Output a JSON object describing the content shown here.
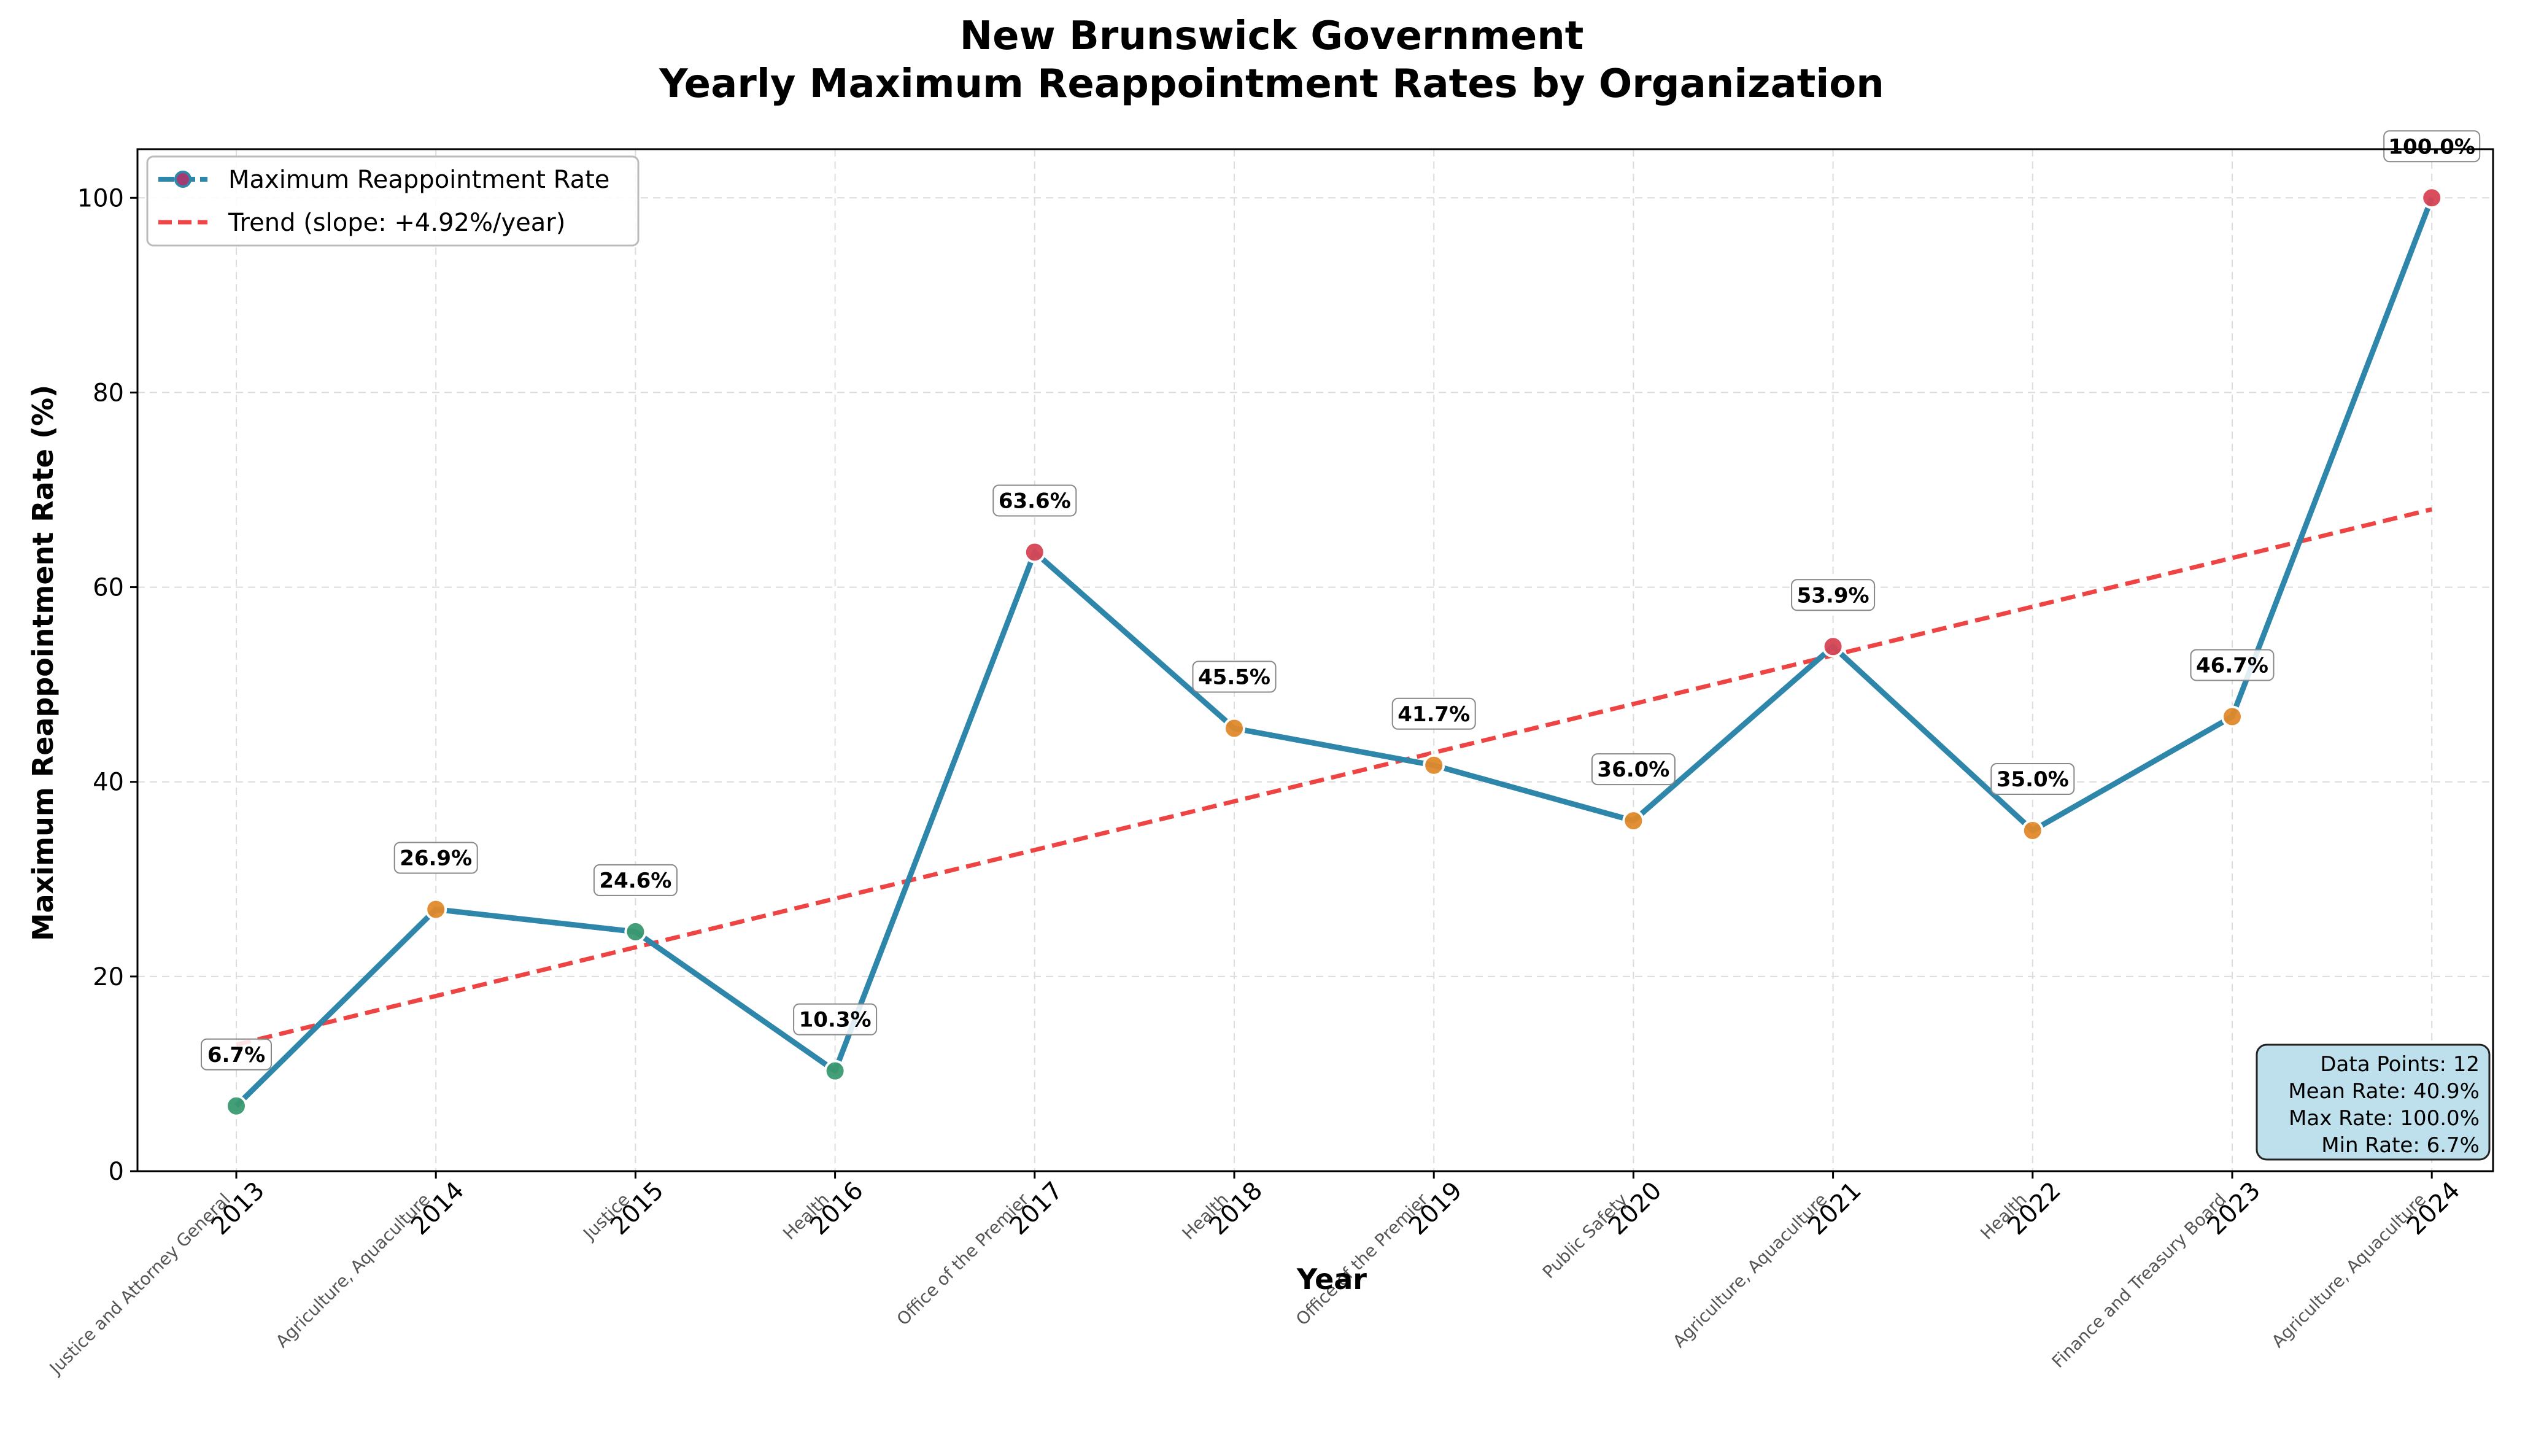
{
  "chart_data": {
    "type": "line",
    "title_line1": "New Brunswick Government",
    "title_line2": "Yearly Maximum Reappointment Rates by Organization",
    "xlabel": "Year",
    "ylabel": "Maximum Reappointment Rate (%)",
    "ylim": [
      0,
      105
    ],
    "yticks": [
      0,
      20,
      40,
      60,
      80,
      100
    ],
    "grid": true,
    "x": [
      2013,
      2014,
      2015,
      2016,
      2017,
      2018,
      2019,
      2020,
      2021,
      2022,
      2023,
      2024
    ],
    "values": [
      6.7,
      26.9,
      24.6,
      10.3,
      63.6,
      45.5,
      41.7,
      36.0,
      53.9,
      35.0,
      46.7,
      100.0
    ],
    "value_labels": [
      "6.7%",
      "26.9%",
      "24.6%",
      "10.3%",
      "63.6%",
      "45.5%",
      "41.7%",
      "36.0%",
      "53.9%",
      "35.0%",
      "46.7%",
      "100.0%"
    ],
    "organizations": [
      "Justice and Attorney General",
      "Agriculture, Aquaculture",
      "Justice",
      "Health",
      "Office of the Premier",
      "Health",
      "Office of the Premier",
      "Public Safety",
      "Agriculture, Aquaculture",
      "Health",
      "Finance and Treasury Board",
      "Agriculture, Aquaculture"
    ],
    "trend": {
      "start": 13.0,
      "end": 68.0
    },
    "legend": {
      "position": "top-left",
      "series_label": "Maximum Reappointment Rate",
      "trend_label": "Trend (slope: +4.92%/year)"
    },
    "stats": {
      "data_points": "Data Points: 12",
      "mean": "Mean Rate: 40.9%",
      "max": "Max Rate: 100.0%",
      "min": "Min Rate: 6.7%"
    },
    "colors": {
      "line": "#2e86ab",
      "trend": "#ef4444",
      "low": "#3a9970",
      "mid": "#e0892a",
      "high": "#d64454",
      "stats_box": "#bde0ec"
    }
  }
}
